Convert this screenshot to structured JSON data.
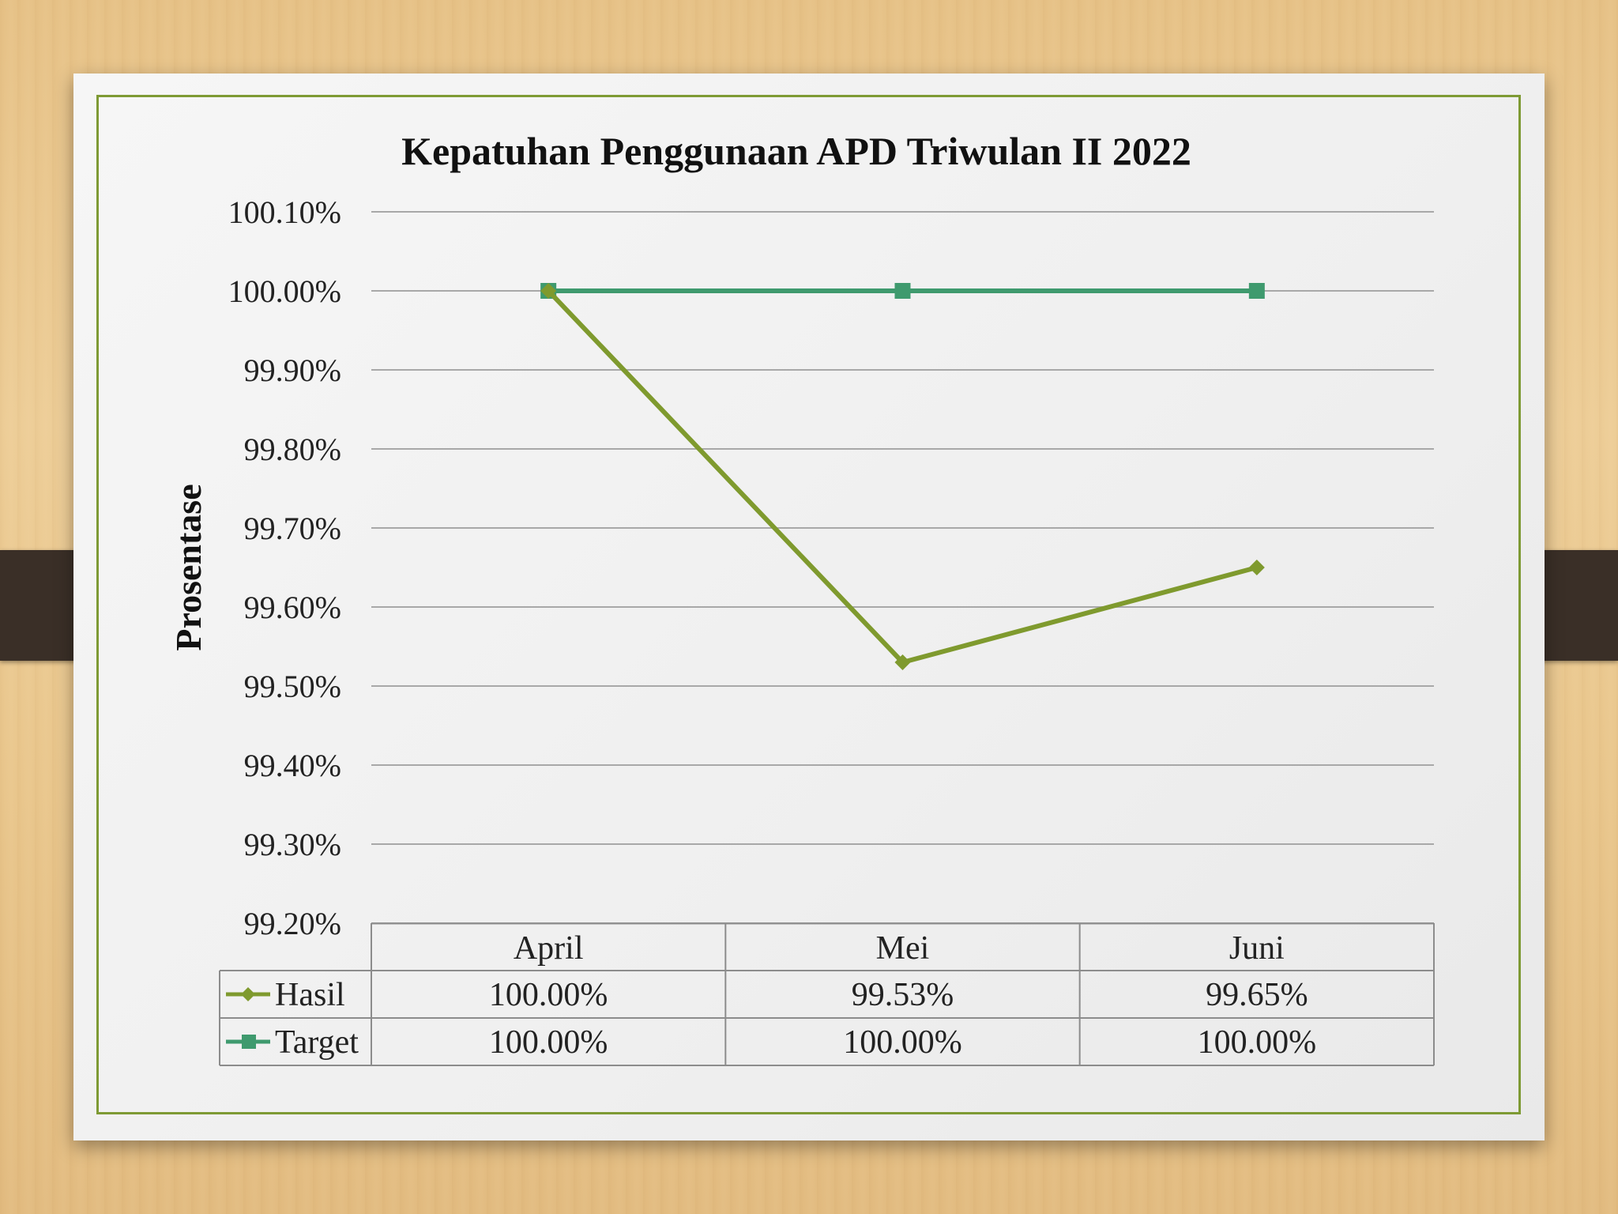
{
  "chart_data": {
    "type": "line",
    "title": "Kepatuhan Penggunaan APD Triwulan II 2022",
    "ylabel": "Prosentase",
    "xlabel": "",
    "categories": [
      "April",
      "Mei",
      "Juni"
    ],
    "ylim": [
      99.2,
      100.1
    ],
    "yticks": [
      "100.10%",
      "100.00%",
      "99.90%",
      "99.80%",
      "99.70%",
      "99.60%",
      "99.50%",
      "99.40%",
      "99.30%",
      "99.20%"
    ],
    "ytick_values": [
      100.1,
      100.0,
      99.9,
      99.8,
      99.7,
      99.6,
      99.5,
      99.4,
      99.3,
      99.2
    ],
    "grid": true,
    "legend": "data-table",
    "series": [
      {
        "name": "Hasil",
        "values": [
          100.0,
          99.53,
          99.65
        ],
        "labels": [
          "100.00%",
          "99.53%",
          "99.65%"
        ],
        "color": "#7f9a2e",
        "marker": "diamond"
      },
      {
        "name": "Target",
        "values": [
          100.0,
          100.0,
          100.0
        ],
        "labels": [
          "100.00%",
          "100.00%",
          "100.00%"
        ],
        "color": "#3f9a6e",
        "marker": "square"
      }
    ]
  }
}
